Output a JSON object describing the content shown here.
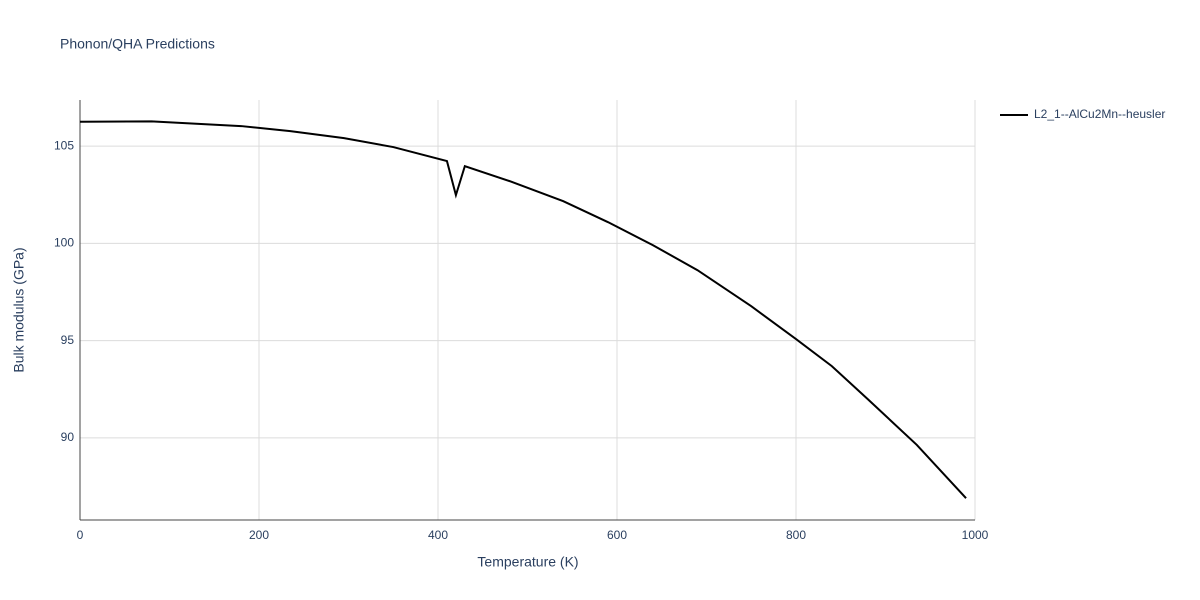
{
  "chart_data": {
    "type": "line",
    "title": "Phonon/QHA Predictions",
    "x_label": "Temperature (K)",
    "y_label": "Bulk modulus (GPa)",
    "xlim": [
      0,
      1000
    ],
    "xticks": [
      0,
      200,
      400,
      600,
      800,
      1000
    ],
    "ylim": [
      85.78,
      107.37
    ],
    "yticks": [
      90,
      95,
      100,
      105
    ],
    "grid": true,
    "series": [
      {
        "name": "L2_1--AlCu2Mn--heusler",
        "color": "#000000",
        "x": [
          0,
          80,
          180,
          235,
          295,
          350,
          410,
          420,
          430,
          480,
          540,
          590,
          640,
          690,
          750,
          800,
          840,
          880,
          935,
          990
        ],
        "values": [
          106.25,
          106.27,
          106.03,
          105.77,
          105.41,
          104.95,
          104.23,
          102.48,
          103.97,
          103.2,
          102.17,
          101.09,
          99.91,
          98.62,
          96.77,
          95.08,
          93.69,
          92.0,
          89.64,
          86.9
        ]
      }
    ]
  }
}
